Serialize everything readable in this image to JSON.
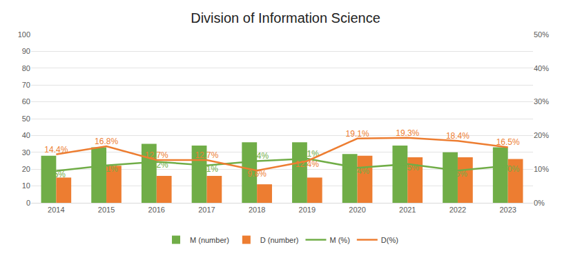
{
  "chart_data": {
    "type": "bar",
    "title": "Division of Information Science",
    "categories": [
      "2014",
      "2015",
      "2016",
      "2017",
      "2018",
      "2019",
      "2020",
      "2021",
      "2022",
      "2023"
    ],
    "series": [
      {
        "name": "M (number)",
        "type": "bar",
        "color": "#70ad47",
        "values": [
          28,
          33,
          35,
          34,
          36,
          36,
          29,
          34,
          30,
          33
        ]
      },
      {
        "name": "D (number)",
        "type": "bar",
        "color": "#ed7d31",
        "values": [
          15,
          22,
          16,
          16,
          11,
          15,
          28,
          27,
          27,
          26
        ]
      },
      {
        "name": "M (%)",
        "type": "line",
        "axis": "y2",
        "color": "#70ad47",
        "values": [
          9.5,
          11.1,
          12.2,
          11.1,
          12.4,
          13.1,
          10.4,
          11.5,
          9.6,
          11.0
        ],
        "value_labels": [
          "9.5%",
          "11.1%",
          "12.2%",
          "11.1%",
          "12.4%",
          "13.1%",
          "10.4%",
          "11.5%",
          "9.6%",
          "11.0%"
        ]
      },
      {
        "name": "D(%)",
        "type": "line",
        "axis": "y2",
        "color": "#ed7d31",
        "values": [
          14.4,
          16.8,
          12.7,
          12.7,
          9.6,
          12.4,
          19.1,
          19.3,
          18.4,
          16.5
        ],
        "value_labels": [
          "14.4%",
          "16.8%",
          "12.7%",
          "12.7%",
          "9.6%",
          "12.4%",
          "19.1%",
          "19.3%",
          "18.4%",
          "16.5%"
        ]
      }
    ],
    "ylim": [
      0,
      100
    ],
    "yticks": [
      0,
      10,
      20,
      30,
      40,
      50,
      60,
      70,
      80,
      90,
      100
    ],
    "y2lim": [
      0,
      50
    ],
    "y2ticks": [
      {
        "value": 0,
        "label": "0%"
      },
      {
        "value": 10,
        "label": "10%"
      },
      {
        "value": 20,
        "label": "20%"
      },
      {
        "value": 30,
        "label": "30%"
      },
      {
        "value": 40,
        "label": "40%"
      },
      {
        "value": 50,
        "label": "50%"
      }
    ],
    "grid": true,
    "legend": "bottom",
    "data_labels": true
  }
}
